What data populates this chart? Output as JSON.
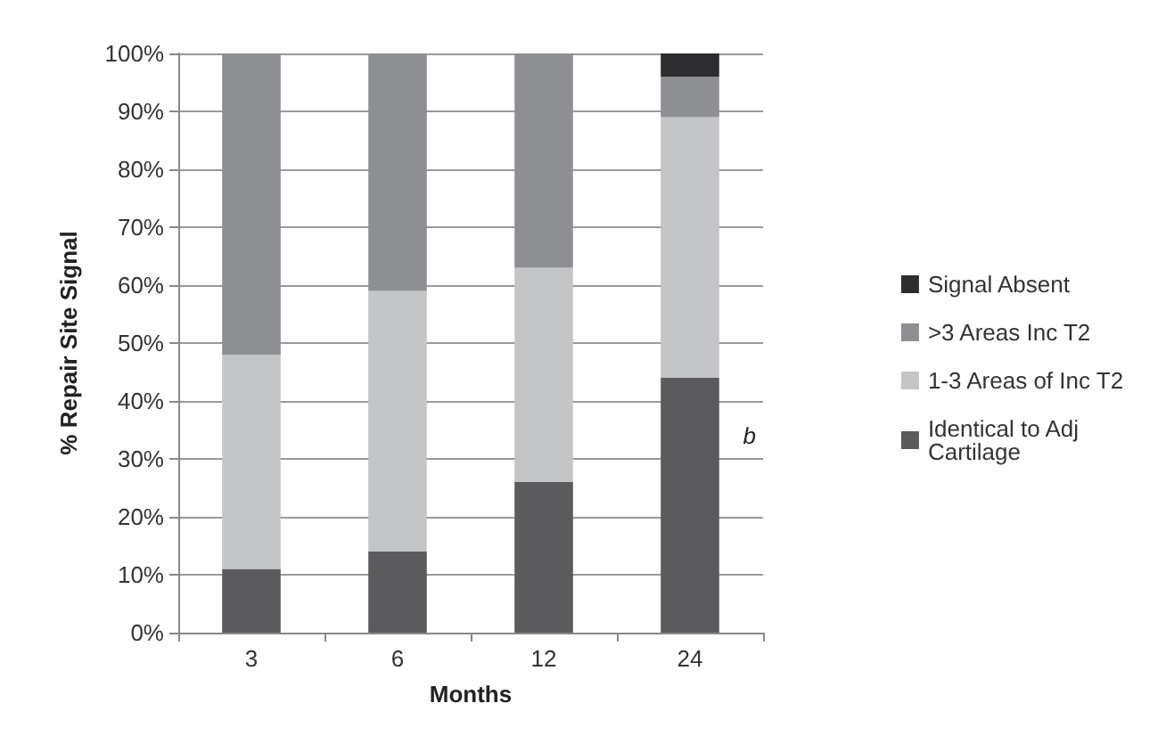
{
  "chart_data": {
    "type": "bar",
    "stacked": true,
    "xlabel": "Months",
    "ylabel": "% Repair Site Signal",
    "categories": [
      "3",
      "6",
      "12",
      "24"
    ],
    "series": [
      {
        "name": "Identical to Adj Cartilage",
        "color": "#5b5b5d",
        "values": [
          11,
          14,
          26,
          44
        ]
      },
      {
        "name": "1-3 Areas of Inc T2",
        "color": "#c4c5c7",
        "values": [
          37,
          45,
          37,
          45
        ]
      },
      {
        "name": ">3 Areas Inc T2",
        "color": "#8e8f92",
        "values": [
          52,
          41,
          37,
          7
        ]
      },
      {
        "name": "Signal Absent",
        "color": "#2d2d2f",
        "values": [
          0,
          0,
          0,
          4
        ]
      }
    ],
    "ylim": [
      0,
      100
    ],
    "yticks": [
      {
        "value": 0,
        "label": "0%"
      },
      {
        "value": 10,
        "label": "10%"
      },
      {
        "value": 20,
        "label": "20%"
      },
      {
        "value": 30,
        "label": "30%"
      },
      {
        "value": 40,
        "label": "40%"
      },
      {
        "value": 50,
        "label": "50%"
      },
      {
        "value": 60,
        "label": "60%"
      },
      {
        "value": 70,
        "label": "70%"
      },
      {
        "value": 80,
        "label": "80%"
      },
      {
        "value": 90,
        "label": "90%"
      },
      {
        "value": 100,
        "label": "100%"
      }
    ],
    "grid": "y",
    "legend": "right",
    "annotations": [
      "b"
    ]
  }
}
